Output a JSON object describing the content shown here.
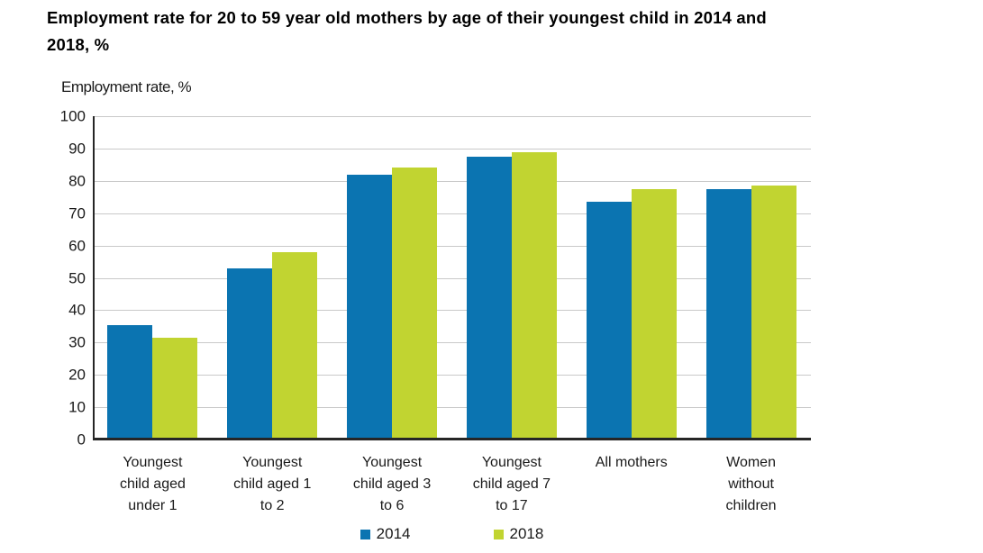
{
  "page": {
    "title_line1": "Employment rate for 20 to 59 year old mothers by age of their youngest child in 2014 and",
    "title_line2": "2018, %"
  },
  "chart_data": {
    "type": "bar",
    "title": "Employment rate for 20 to 59 year old mothers by age of their youngest child in 2014 and 2018, %",
    "ylabel": "Employment rate, %",
    "xlabel": "",
    "ylim": [
      0,
      100
    ],
    "ytick_step": 10,
    "grid": true,
    "legend_position": "bottom-center",
    "categories": [
      "Youngest child aged under 1",
      "Youngest child aged 1 to 2",
      "Youngest child aged 3 to 6",
      "Youngest child aged 7 to 17",
      "All mothers",
      "Women without children"
    ],
    "category_label_lines": [
      [
        "Youngest",
        "child aged",
        "under 1"
      ],
      [
        "Youngest",
        "child aged 1",
        "to 2"
      ],
      [
        "Youngest",
        "child aged 3",
        "to 6"
      ],
      [
        "Youngest",
        "child aged 7",
        "to 17"
      ],
      [
        "All mothers"
      ],
      [
        "Women",
        "without",
        "children"
      ]
    ],
    "series": [
      {
        "name": "2014",
        "color": "#0b74b1",
        "values": [
          35.5,
          53,
          82,
          87.5,
          73.5,
          77.5
        ]
      },
      {
        "name": "2018",
        "color": "#c1d431",
        "values": [
          31.5,
          58,
          84,
          89,
          77.5,
          78.5
        ]
      }
    ],
    "colors": {
      "axis": "#262626",
      "gridline": "#c9c9c9",
      "text": "#1a1a1a",
      "background": "#ffffff"
    }
  }
}
